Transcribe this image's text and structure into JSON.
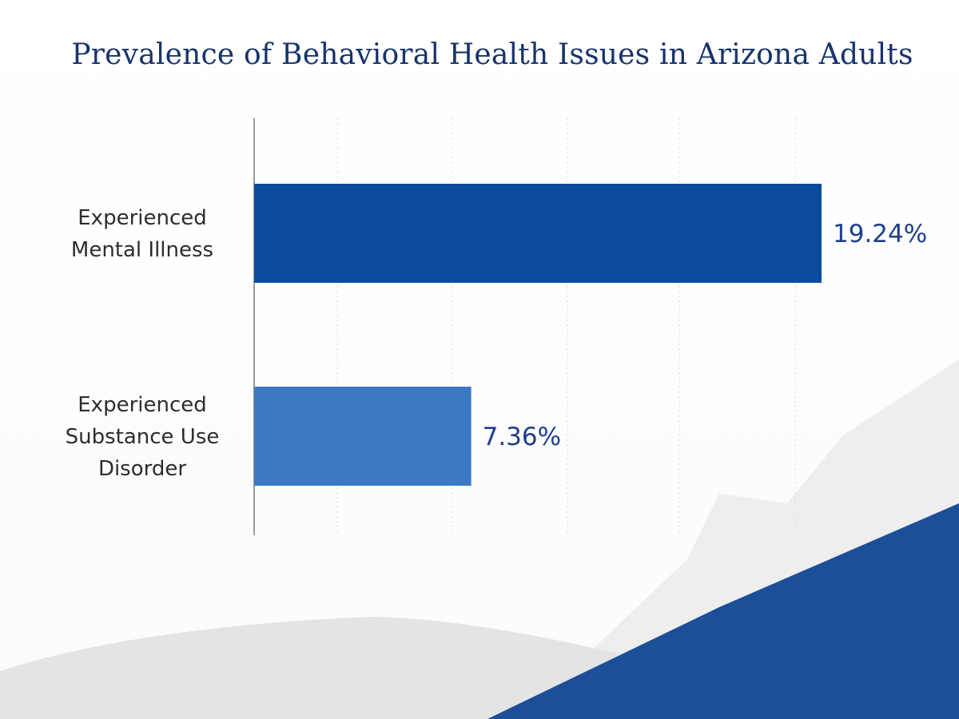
{
  "chart_data": {
    "type": "bar",
    "orientation": "horizontal",
    "title": "Prevalence of Behavioral Health Issues in Arizona Adults",
    "categories": [
      [
        "Experienced",
        "Mental Illness"
      ],
      [
        "Experienced",
        "Substance Use",
        "Disorder"
      ]
    ],
    "values": [
      19.24,
      7.36
    ],
    "value_labels": [
      "19.24%",
      "7.36%"
    ],
    "xlim": [
      0,
      20.1
    ],
    "grid": true,
    "colors": {
      "bars": [
        "#0b4c9f",
        "#3b7ac3"
      ],
      "title": "#18336b",
      "value_text": "#1d3f8c",
      "backdrop_light": "#e6e6e6",
      "backdrop_lighter": "#efefef",
      "backdrop_blue": "#1b4f98"
    }
  }
}
